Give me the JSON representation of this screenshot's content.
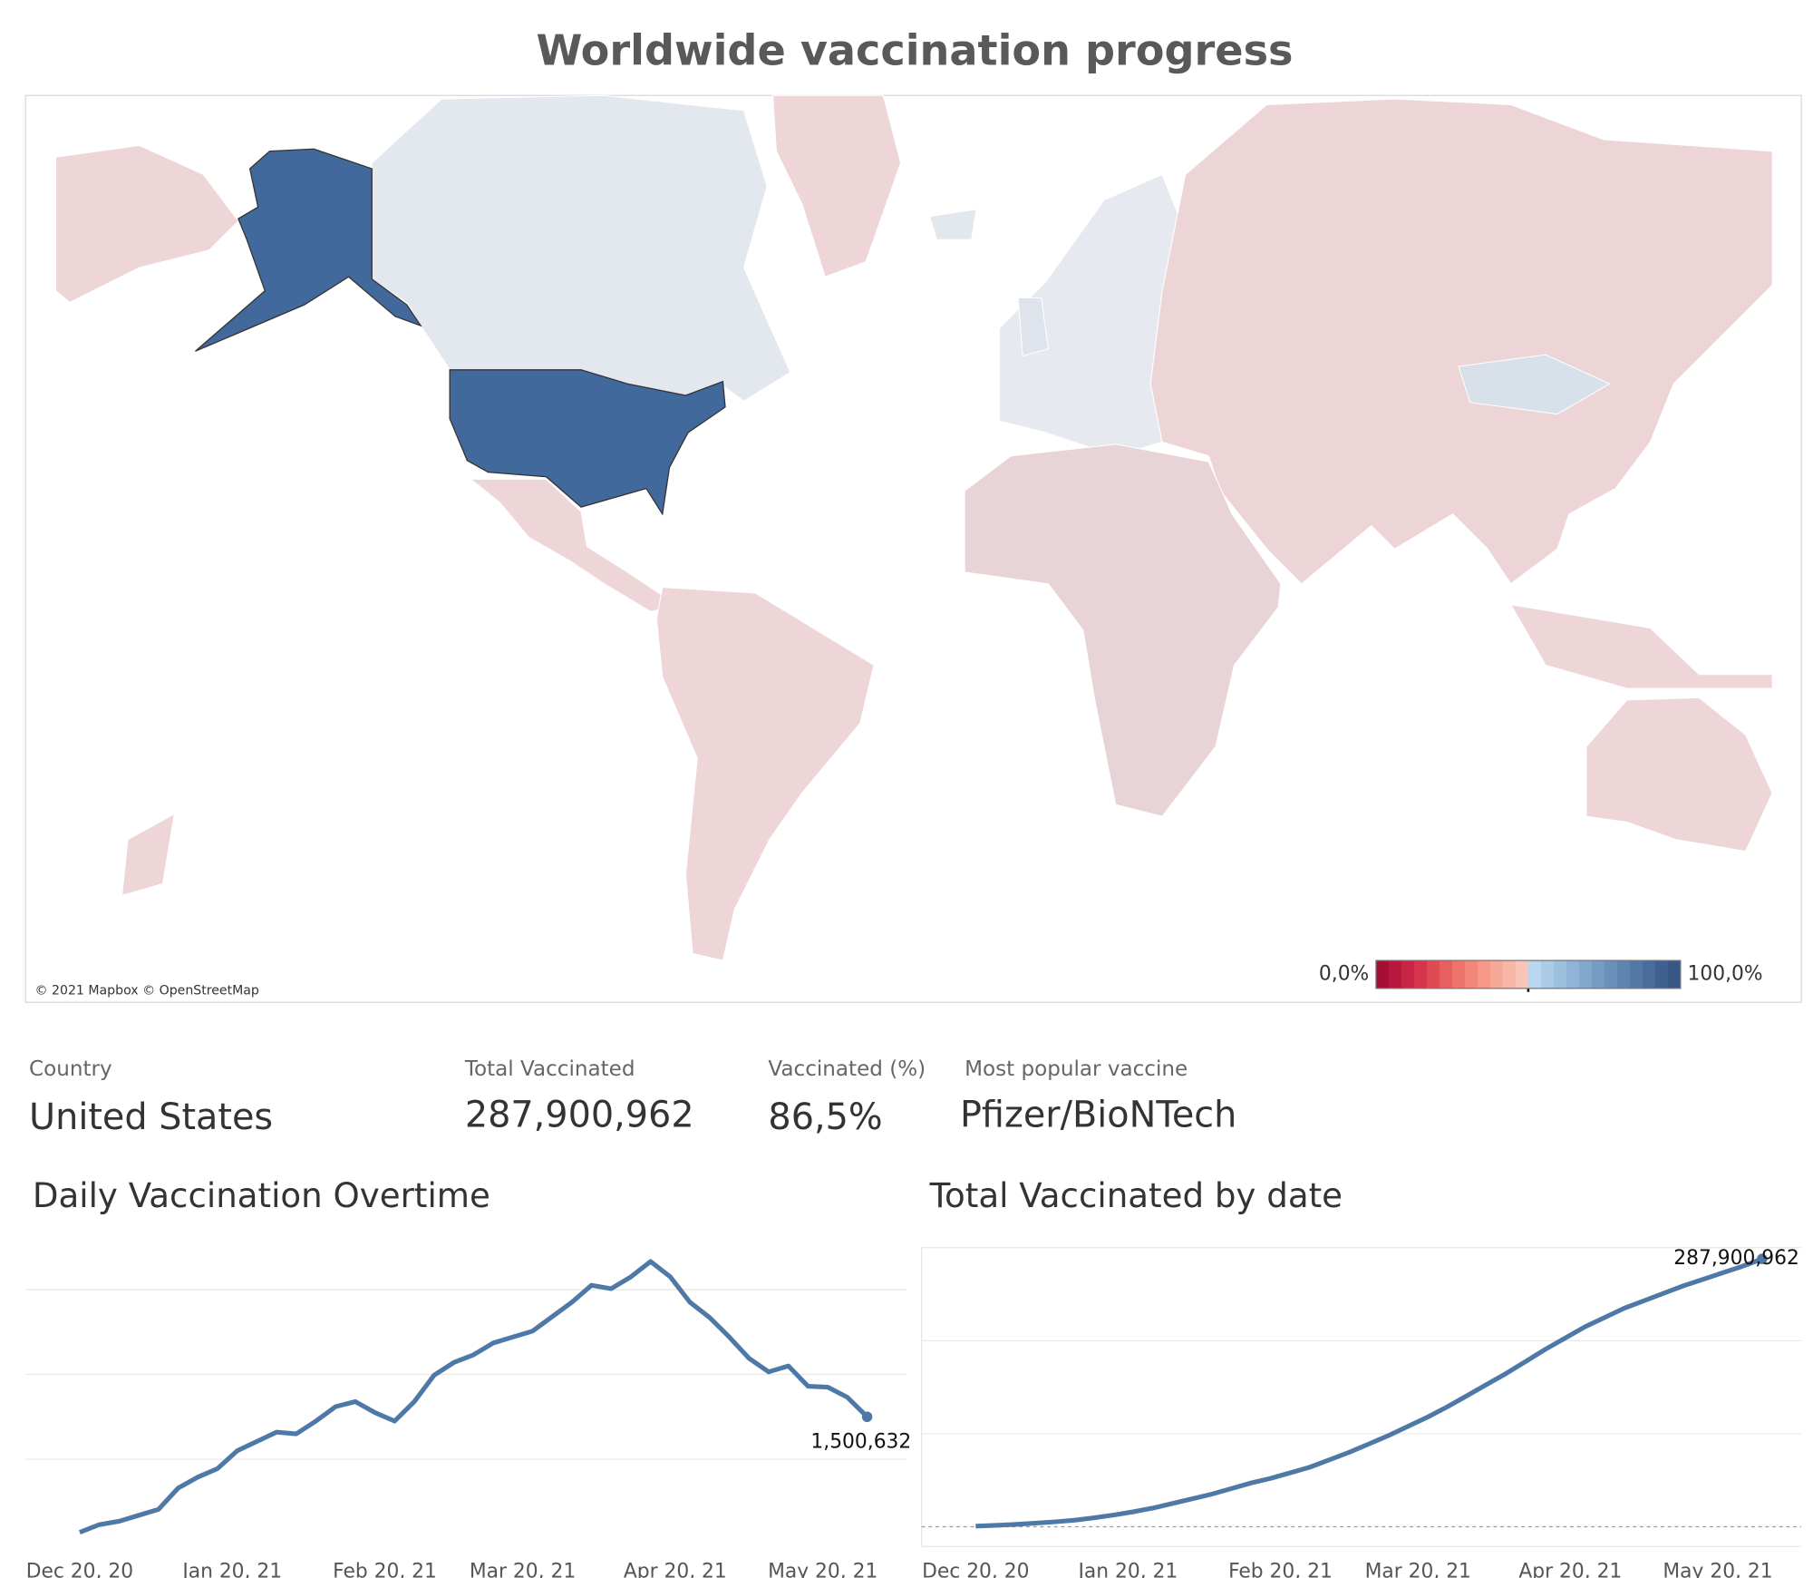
{
  "title": "Worldwide vaccination progress",
  "map": {
    "attribution": "© 2021 Mapbox © OpenStreetMap",
    "legend": {
      "range": [
        {
          "value": 0,
          "label": "0,0%"
        },
        {
          "value": 100,
          "label": "100,0%"
        }
      ],
      "colors": [
        "#a50f35",
        "#b8183d",
        "#c82444",
        "#d6344c",
        "#e04a55",
        "#e85f5f",
        "#ee736b",
        "#f28679",
        "#f59887",
        "#f7a896",
        "#f8b7a6",
        "#f9c5b8",
        "#b9d6ee",
        "#abcbe7",
        "#9dc0df",
        "#8fb4d7",
        "#82a8ce",
        "#769cc4",
        "#6a90ba",
        "#5f84b0",
        "#5478a5",
        "#4a6c9a",
        "#40618f",
        "#375684"
      ]
    }
  },
  "details": {
    "labels": [
      "Country",
      "Total Vaccinated",
      "Vaccinated (%)",
      "Most popular vaccine"
    ],
    "values": [
      "United States",
      "287,900,962",
      "86,5%",
      "Pfizer/BioNTech"
    ]
  },
  "chart_data": [
    {
      "type": "line",
      "title": "Daily Vaccination Overtime",
      "color": "#4e79a7",
      "x": [
        "2020-12-20",
        "2020-12-24",
        "2020-12-28",
        "2021-01-01",
        "2021-01-05",
        "2021-01-09",
        "2021-01-13",
        "2021-01-17",
        "2021-01-21",
        "2021-01-25",
        "2021-01-29",
        "2021-02-02",
        "2021-02-06",
        "2021-02-10",
        "2021-02-14",
        "2021-02-18",
        "2021-02-22",
        "2021-02-26",
        "2021-03-02",
        "2021-03-06",
        "2021-03-10",
        "2021-03-14",
        "2021-03-18",
        "2021-03-22",
        "2021-03-26",
        "2021-03-30",
        "2021-04-03",
        "2021-04-07",
        "2021-04-11",
        "2021-04-15",
        "2021-04-19",
        "2021-04-23",
        "2021-04-27",
        "2021-05-01",
        "2021-05-05",
        "2021-05-09",
        "2021-05-13",
        "2021-05-17",
        "2021-05-21",
        "2021-05-25",
        "2021-05-29"
      ],
      "values": [
        140000,
        230000,
        270000,
        340000,
        410000,
        660000,
        790000,
        890000,
        1100000,
        1210000,
        1320000,
        1300000,
        1450000,
        1620000,
        1680000,
        1550000,
        1450000,
        1680000,
        1990000,
        2140000,
        2230000,
        2370000,
        2440000,
        2510000,
        2680000,
        2850000,
        3050000,
        3010000,
        3150000,
        3330000,
        3150000,
        2850000,
        2670000,
        2440000,
        2190000,
        2030000,
        2100000,
        1860000,
        1850000,
        1730000,
        1500632
      ],
      "value_labels": [
        null,
        null,
        null,
        null,
        null,
        null,
        null,
        null,
        null,
        null,
        null,
        null,
        null,
        null,
        null,
        null,
        null,
        null,
        null,
        null,
        null,
        null,
        null,
        null,
        null,
        null,
        null,
        null,
        null,
        null,
        null,
        null,
        null,
        null,
        null,
        null,
        null,
        null,
        null,
        null,
        "1,500,632"
      ],
      "xlim": [
        "2020-12-09",
        "2021-06-06"
      ],
      "xticks": [
        {
          "value": "2020-12-20",
          "label": "Dec 20, 20"
        },
        {
          "value": "2021-01-20",
          "label": "Jan 20, 21"
        },
        {
          "value": "2021-02-20",
          "label": "Feb 20, 21"
        },
        {
          "value": "2021-03-20",
          "label": "Mar 20, 21"
        },
        {
          "value": "2021-04-20",
          "label": "Apr 20, 21"
        },
        {
          "value": "2021-05-20",
          "label": "May 20, 21"
        }
      ],
      "ylim": [
        0,
        3500000
      ],
      "yticks": [
        1000000,
        2000000,
        3000000
      ],
      "grid": true
    },
    {
      "type": "line",
      "title": "Total Vaccinated by date",
      "color": "#4e79a7",
      "x": [
        "2020-12-20",
        "2020-12-24",
        "2020-12-28",
        "2021-01-01",
        "2021-01-05",
        "2021-01-09",
        "2021-01-13",
        "2021-01-17",
        "2021-01-21",
        "2021-01-25",
        "2021-01-29",
        "2021-02-02",
        "2021-02-06",
        "2021-02-10",
        "2021-02-14",
        "2021-02-18",
        "2021-02-22",
        "2021-02-26",
        "2021-03-02",
        "2021-03-06",
        "2021-03-10",
        "2021-03-14",
        "2021-03-18",
        "2021-03-22",
        "2021-03-26",
        "2021-03-30",
        "2021-04-03",
        "2021-04-07",
        "2021-04-11",
        "2021-04-15",
        "2021-04-19",
        "2021-04-23",
        "2021-04-27",
        "2021-05-01",
        "2021-05-05",
        "2021-05-09",
        "2021-05-13",
        "2021-05-17",
        "2021-05-21",
        "2021-05-25",
        "2021-05-29"
      ],
      "values": [
        600000,
        1500000,
        2500000,
        3800000,
        5200000,
        7000000,
        9500000,
        12500000,
        16000000,
        20000000,
        25000000,
        30000000,
        35000000,
        41000000,
        47000000,
        52000000,
        58000000,
        64000000,
        72000000,
        80000000,
        89000000,
        98000000,
        108000000,
        118000000,
        129000000,
        141000000,
        153000000,
        165000000,
        178000000,
        191000000,
        203000000,
        215000000,
        225000000,
        235000000,
        243000000,
        251000000,
        259000000,
        266000000,
        273000000,
        280000000,
        287900962
      ],
      "value_labels": [
        null,
        null,
        null,
        null,
        null,
        null,
        null,
        null,
        null,
        null,
        null,
        null,
        null,
        null,
        null,
        null,
        null,
        null,
        null,
        null,
        null,
        null,
        null,
        null,
        null,
        null,
        null,
        null,
        null,
        null,
        null,
        null,
        null,
        null,
        null,
        null,
        null,
        null,
        null,
        null,
        "287,900,962"
      ],
      "xlim": [
        "2020-12-09",
        "2021-06-06"
      ],
      "xticks": [
        {
          "value": "2020-12-20",
          "label": "Dec 20, 20"
        },
        {
          "value": "2021-01-20",
          "label": "Jan 20, 21"
        },
        {
          "value": "2021-02-20",
          "label": "Feb 20, 21"
        },
        {
          "value": "2021-03-20",
          "label": "Mar 20, 21"
        },
        {
          "value": "2021-04-20",
          "label": "Apr 20, 21"
        },
        {
          "value": "2021-05-20",
          "label": "May 20, 21"
        }
      ],
      "ylim": [
        -20000000,
        300000000
      ],
      "yticks": [
        0,
        100000000,
        200000000,
        300000000
      ],
      "grid": true
    }
  ]
}
